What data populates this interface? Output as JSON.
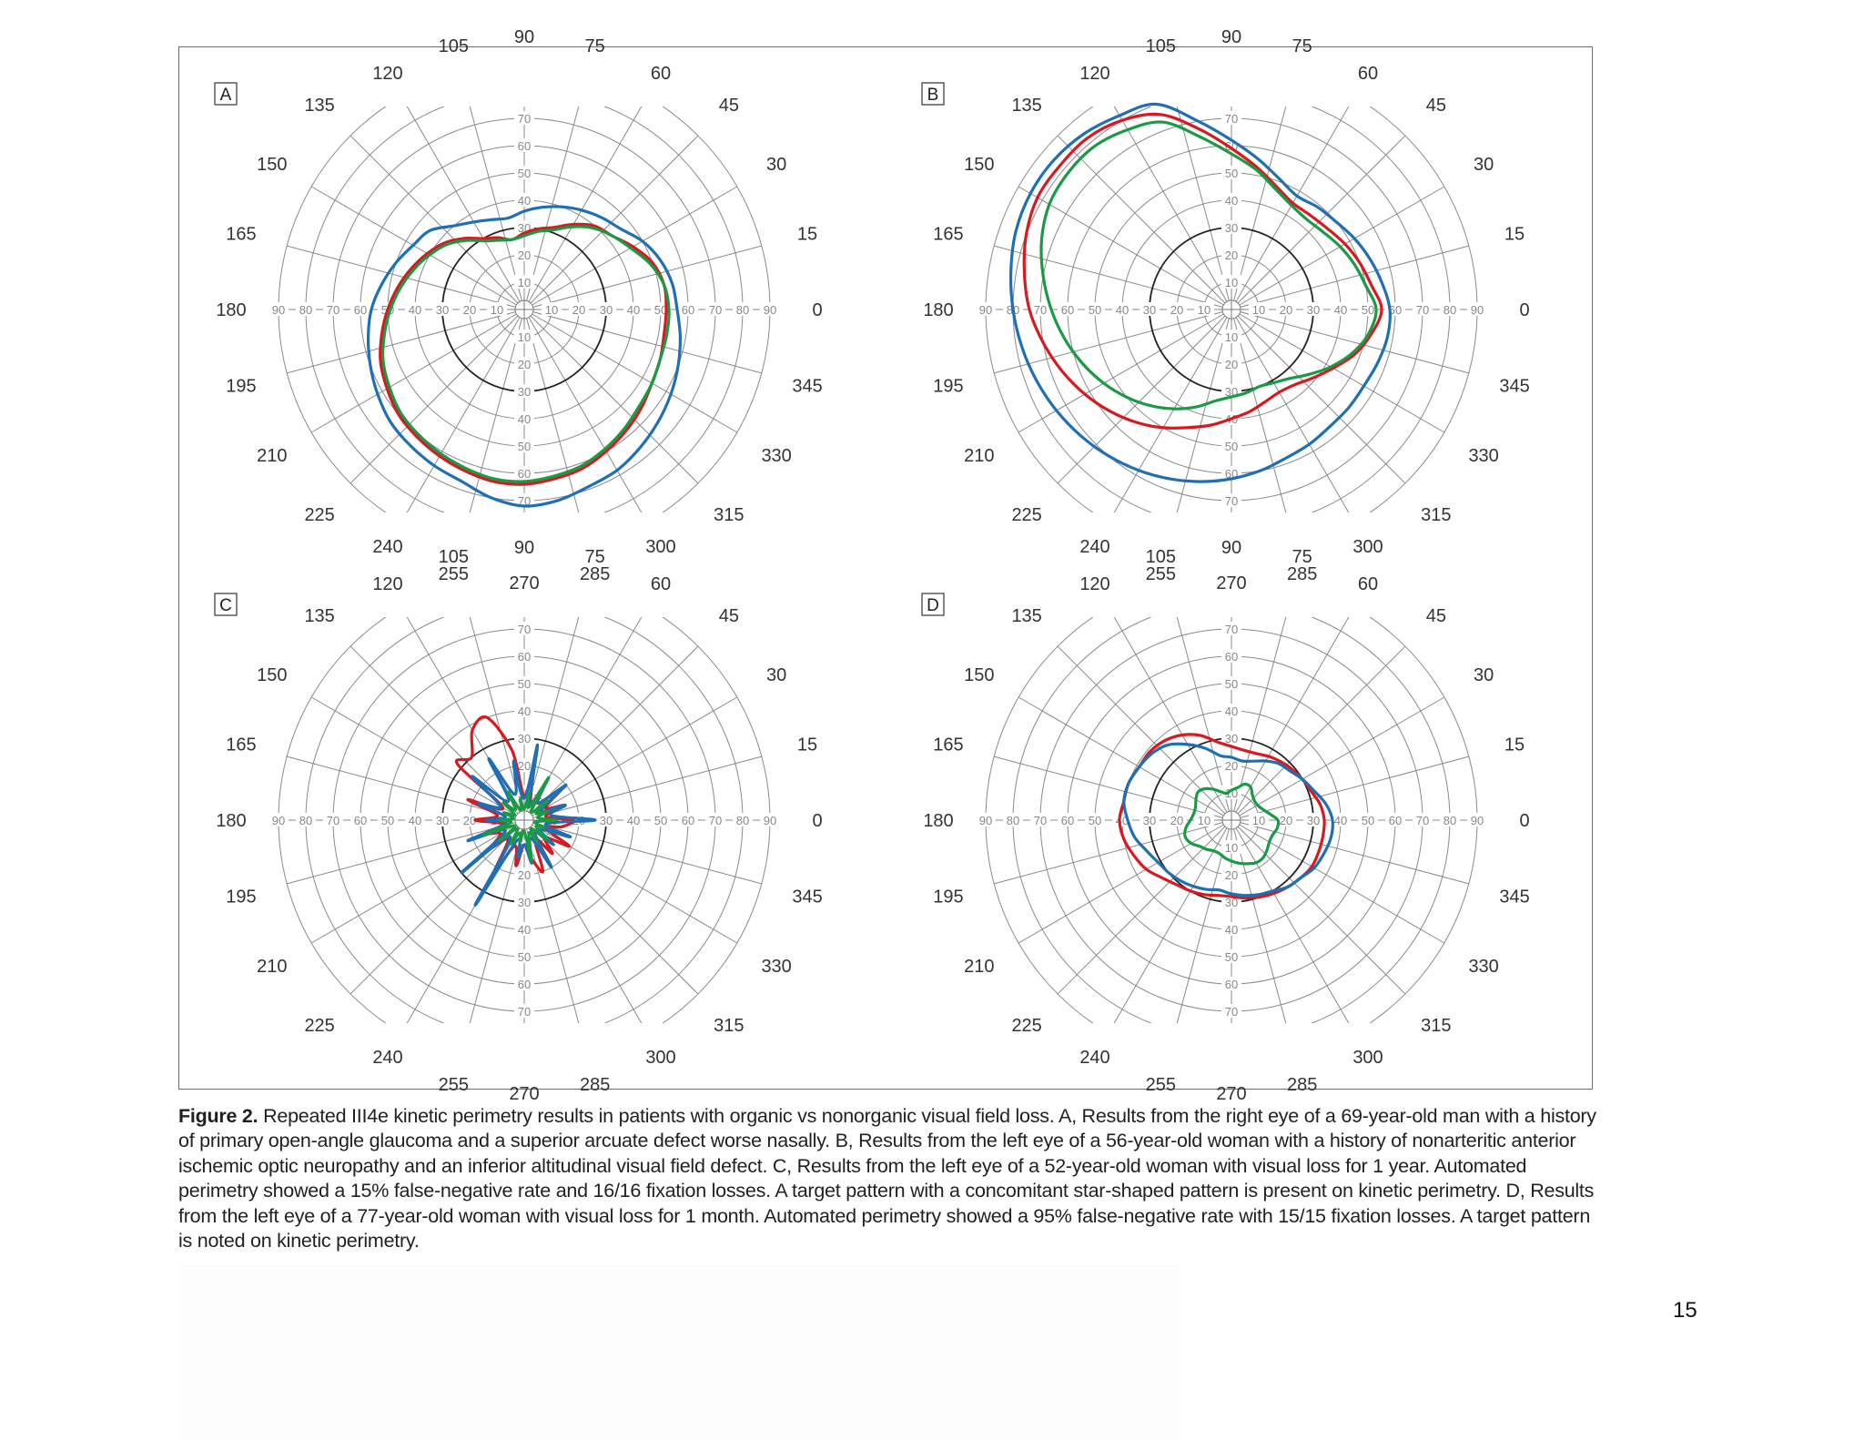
{
  "panels": [
    {
      "letter": "A",
      "angle_labels": [
        "0",
        "15",
        "30",
        "45",
        "60",
        "75",
        "90",
        "105",
        "120",
        "135",
        "150",
        "165",
        "180",
        "195",
        "210",
        "225",
        "240",
        "255",
        "270",
        "285",
        "300",
        "315",
        "330",
        "345"
      ],
      "isopters": [
        {
          "color": "#1f6fb5",
          "r": [
            56,
            55,
            53,
            50,
            46,
            44,
            42,
            40,
            38,
            36,
            34,
            35,
            37,
            40,
            45,
            47,
            50,
            53,
            56,
            58,
            60,
            62,
            64,
            65,
            66,
            67,
            70,
            72,
            71,
            69,
            68,
            66,
            64,
            62,
            60,
            58
          ]
        },
        {
          "color": "#d71920",
          "r": [
            52,
            52,
            50,
            46,
            42,
            40,
            36,
            32,
            30,
            28,
            26,
            28,
            30,
            34,
            38,
            41,
            44,
            47,
            50,
            53,
            56,
            58,
            60,
            61,
            62,
            63,
            64,
            64,
            63,
            62,
            60,
            58,
            56,
            54,
            53,
            52
          ]
        },
        {
          "color": "#1a9a44",
          "r": [
            53,
            52,
            49,
            45,
            42,
            39,
            35,
            31,
            29,
            27,
            26,
            27,
            29,
            33,
            37,
            40,
            43,
            46,
            49,
            52,
            55,
            57,
            59,
            60,
            61,
            62,
            63,
            63,
            62,
            61,
            59,
            57,
            55,
            54,
            53,
            53
          ]
        }
      ]
    },
    {
      "letter": "B",
      "angle_labels": [
        "0",
        "15",
        "30",
        "45",
        "60",
        "75",
        "90",
        "105",
        "120",
        "135",
        "150",
        "165",
        "180",
        "195",
        "210",
        "225",
        "240",
        "255",
        "270",
        "285",
        "300",
        "315",
        "330",
        "345"
      ],
      "isopters": [
        {
          "color": "#1f6fb5",
          "r": [
            58,
            56,
            54,
            52,
            50,
            49,
            48,
            51,
            56,
            62,
            70,
            80,
            82,
            84,
            85,
            85,
            84,
            82,
            80,
            78,
            76,
            74,
            72,
            70,
            68,
            66,
            64,
            62,
            60,
            58,
            57,
            56,
            56,
            56,
            57,
            58
          ]
        },
        {
          "color": "#d71920",
          "r": [
            55,
            52,
            50,
            48,
            46,
            45,
            45,
            48,
            53,
            59,
            67,
            76,
            80,
            82,
            82,
            82,
            80,
            77,
            74,
            70,
            66,
            62,
            58,
            54,
            50,
            46,
            43,
            40,
            38,
            36,
            35,
            36,
            39,
            43,
            48,
            52
          ]
        },
        {
          "color": "#1a9a44",
          "r": [
            53,
            50,
            48,
            46,
            44,
            43,
            44,
            47,
            52,
            57,
            64,
            73,
            76,
            78,
            78,
            77,
            74,
            70,
            66,
            62,
            58,
            54,
            50,
            46,
            42,
            38,
            34,
            32,
            31,
            30,
            31,
            33,
            37,
            42,
            47,
            51
          ]
        }
      ]
    },
    {
      "letter": "C",
      "angle_labels": [
        "0",
        "15",
        "30",
        "45",
        "60",
        "75",
        "90",
        "105",
        "120",
        "135",
        "150",
        "165",
        "180",
        "195",
        "210",
        "225",
        "240",
        "255",
        "270",
        "285",
        "300",
        "315",
        "330",
        "345"
      ],
      "isopters": [
        {
          "color": "#d71920",
          "r": [
            18,
            8,
            16,
            9,
            18,
            8,
            12,
            7,
            20,
            9,
            26,
            40,
            38,
            30,
            32,
            9,
            22,
            10,
            18,
            8,
            14,
            10,
            16,
            9,
            22,
            10,
            17,
            9,
            14,
            20,
            8,
            16,
            10,
            19,
            8,
            14
          ]
        },
        {
          "color": "#1f6fb5",
          "r": [
            26,
            10,
            16,
            7,
            20,
            8,
            15,
            6,
            28,
            8,
            22,
            10,
            26,
            9,
            25,
            10,
            18,
            7,
            14,
            7,
            22,
            8,
            30,
            8,
            36,
            8,
            14,
            9,
            16,
            7,
            20,
            6,
            14,
            7,
            18,
            8
          ]
        },
        {
          "color": "#1a9a44",
          "r": [
            12,
            5,
            9,
            5,
            11,
            4,
            18,
            5,
            10,
            4,
            8,
            4,
            12,
            5,
            10,
            4,
            8,
            4,
            9,
            5,
            16,
            4,
            12,
            4,
            10,
            5,
            8,
            4,
            15,
            5,
            9,
            4,
            11,
            5,
            8,
            4
          ]
        }
      ]
    },
    {
      "letter": "D",
      "angle_labels": [
        "0",
        "15",
        "30",
        "45",
        "60",
        "75",
        "90",
        "105",
        "120",
        "135",
        "150",
        "165",
        "180",
        "195",
        "210",
        "225",
        "240",
        "255",
        "270",
        "285",
        "300",
        "315",
        "330",
        "345"
      ],
      "isopters": [
        {
          "color": "#d71920",
          "r": [
            34,
            33,
            31,
            30,
            29,
            28,
            27,
            26,
            26,
            27,
            29,
            33,
            36,
            38,
            39,
            39,
            40,
            40,
            41,
            40,
            38,
            36,
            33,
            31,
            30,
            29,
            28,
            28,
            29,
            30,
            31,
            32,
            33,
            34,
            34,
            34
          ]
        },
        {
          "color": "#1f6fb5",
          "r": [
            37,
            35,
            32,
            30,
            28,
            27,
            25,
            23,
            22,
            23,
            24,
            28,
            32,
            36,
            38,
            39,
            40,
            40,
            38,
            36,
            33,
            31,
            30,
            29,
            28,
            27,
            26,
            27,
            28,
            29,
            30,
            32,
            33,
            35,
            36,
            37
          ]
        },
        {
          "color": "#1a9a44",
          "r": [
            17,
            14,
            12,
            11,
            11,
            12,
            14,
            14,
            12,
            11,
            10,
            11,
            13,
            15,
            16,
            15,
            14,
            14,
            15,
            17,
            18,
            17,
            15,
            14,
            13,
            13,
            14,
            15,
            16,
            17,
            18,
            18,
            17,
            16,
            16,
            17
          ]
        }
      ]
    }
  ],
  "radius_labels": [
    "10",
    "20",
    "30",
    "40",
    "50",
    "60",
    "70"
  ],
  "horizontal_labels": [
    "90",
    "80",
    "70",
    "60",
    "50",
    "40",
    "30",
    "20",
    "10",
    "10",
    "20",
    "30",
    "40",
    "50",
    "60",
    "70",
    "80",
    "90"
  ],
  "caption": {
    "label": "Figure 2.",
    "text": "Repeated III4e kinetic perimetry results in patients with organic vs nonorganic visual field loss. A, Results from the right eye of a 69-year-old man with a history of primary open-angle glaucoma and a superior arcuate defect worse nasally. B, Results from the left eye of a 56-year-old woman with a history of nonarteritic anterior ischemic optic neuropathy and an inferior altitudinal visual field defect. C, Results from the left eye of a 52-year-old woman with visual loss for 1 year. Automated perimetry showed a 15% false-negative rate and 16/16 fixation losses. A target pattern with a concomitant star-shaped pattern is present on kinetic perimetry. D, Results from the left eye of a 77-year-old woman with visual loss for 1 month. Automated perimetry showed a 95% false-negative rate with 15/15 fixation losses. A target pattern is noted on kinetic perimetry."
  },
  "page_number": "15"
}
